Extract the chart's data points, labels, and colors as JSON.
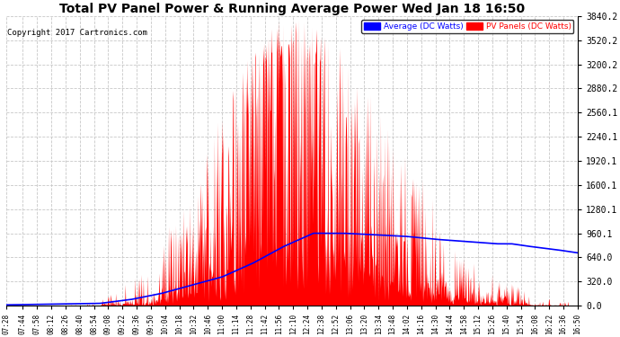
{
  "title": "Total PV Panel Power & Running Average Power Wed Jan 18 16:50",
  "copyright": "Copyright 2017 Cartronics.com",
  "ylabel_right_ticks": [
    0.0,
    320.0,
    640.0,
    960.1,
    1280.1,
    1600.1,
    1920.1,
    2240.1,
    2560.1,
    2880.2,
    3200.2,
    3520.2,
    3840.2
  ],
  "ylim": [
    0.0,
    3840.2
  ],
  "pv_color": "#FF0000",
  "avg_color": "#0000FF",
  "background_color": "#FFFFFF",
  "grid_color": "#C8C8C8",
  "title_fontsize": 10,
  "copyright_fontsize": 6.5,
  "legend_avg_label": "Average (DC Watts)",
  "legend_pv_label": "PV Panels (DC Watts)",
  "x_tick_labels": [
    "07:28",
    "07:44",
    "07:58",
    "08:12",
    "08:26",
    "08:40",
    "08:54",
    "09:08",
    "09:22",
    "09:36",
    "09:50",
    "10:04",
    "10:18",
    "10:32",
    "10:46",
    "11:00",
    "11:14",
    "11:28",
    "11:42",
    "11:56",
    "12:10",
    "12:24",
    "12:38",
    "12:52",
    "13:06",
    "13:20",
    "13:34",
    "13:48",
    "14:02",
    "14:16",
    "14:30",
    "14:44",
    "14:58",
    "15:12",
    "15:26",
    "15:40",
    "15:54",
    "16:08",
    "16:22",
    "16:36",
    "16:50"
  ],
  "avg_control_times": [
    7.467,
    9.0,
    9.5,
    10.0,
    10.5,
    11.0,
    11.5,
    12.0,
    12.5,
    13.0,
    13.5,
    14.0,
    14.5,
    15.0,
    15.5,
    15.75,
    16.0,
    16.5,
    16.833
  ],
  "avg_control_values": [
    10,
    30,
    80,
    160,
    270,
    380,
    560,
    780,
    960,
    960,
    940,
    920,
    880,
    850,
    820,
    820,
    790,
    740,
    700
  ],
  "peak_power": 3840.2,
  "solar_noon": 12.1,
  "sigma": 1.45
}
